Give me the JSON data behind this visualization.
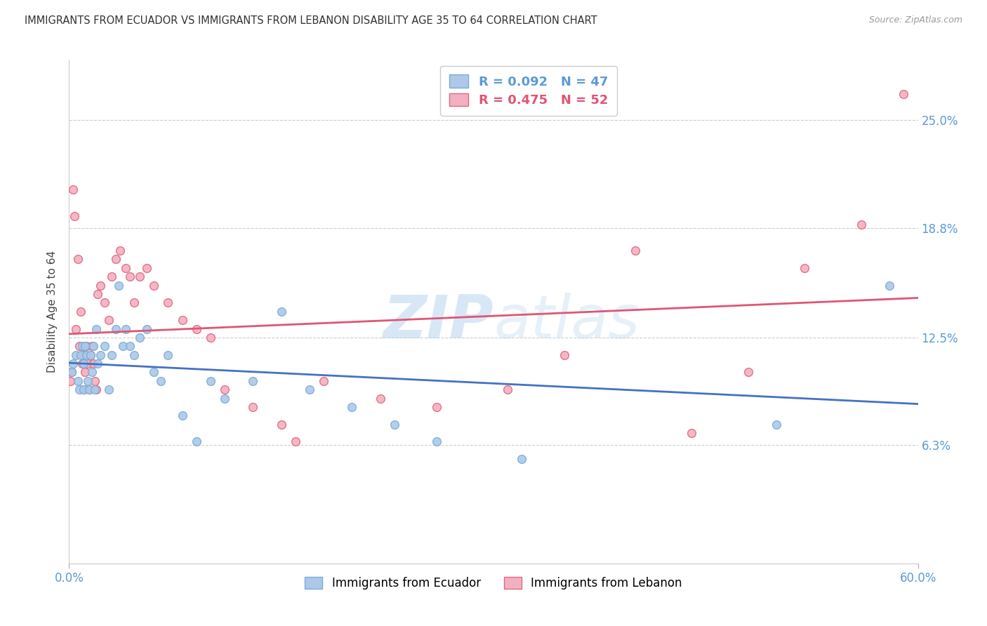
{
  "title": "IMMIGRANTS FROM ECUADOR VS IMMIGRANTS FROM LEBANON DISABILITY AGE 35 TO 64 CORRELATION CHART",
  "source": "Source: ZipAtlas.com",
  "ylabel": "Disability Age 35 to 64",
  "xlim": [
    0.0,
    0.6
  ],
  "ylim": [
    -0.005,
    0.285
  ],
  "ytick_vals": [
    0.063,
    0.125,
    0.188,
    0.25
  ],
  "ytick_labels": [
    "6.3%",
    "12.5%",
    "18.8%",
    "25.0%"
  ],
  "xtick_vals": [
    0.0,
    0.6
  ],
  "xtick_labels": [
    "0.0%",
    "60.0%"
  ],
  "ecuador_color_fill": "#adc8e8",
  "ecuador_color_edge": "#7aaed4",
  "lebanon_color_fill": "#f4b0c0",
  "lebanon_color_edge": "#e06880",
  "legend_ecuador_label": "Immigrants from Ecuador",
  "legend_lebanon_label": "Immigrants from Lebanon",
  "R_ecuador": 0.092,
  "N_ecuador": 47,
  "R_lebanon": 0.475,
  "N_lebanon": 52,
  "text_blue": "#5b9bd5",
  "text_pink": "#e05575",
  "trend_ecuador_color": "#4472c4",
  "trend_lebanon_color": "#e05575",
  "ecuador_x": [
    0.002,
    0.003,
    0.005,
    0.006,
    0.007,
    0.008,
    0.009,
    0.01,
    0.01,
    0.011,
    0.012,
    0.013,
    0.014,
    0.015,
    0.016,
    0.017,
    0.018,
    0.019,
    0.02,
    0.022,
    0.025,
    0.028,
    0.03,
    0.033,
    0.035,
    0.038,
    0.04,
    0.043,
    0.046,
    0.05,
    0.055,
    0.06,
    0.065,
    0.07,
    0.08,
    0.09,
    0.1,
    0.11,
    0.13,
    0.15,
    0.17,
    0.2,
    0.23,
    0.26,
    0.32,
    0.5,
    0.58
  ],
  "ecuador_y": [
    0.105,
    0.11,
    0.115,
    0.1,
    0.095,
    0.115,
    0.12,
    0.11,
    0.095,
    0.12,
    0.115,
    0.1,
    0.095,
    0.115,
    0.105,
    0.12,
    0.095,
    0.13,
    0.11,
    0.115,
    0.12,
    0.095,
    0.115,
    0.13,
    0.155,
    0.12,
    0.13,
    0.12,
    0.115,
    0.125,
    0.13,
    0.105,
    0.1,
    0.115,
    0.08,
    0.065,
    0.1,
    0.09,
    0.1,
    0.14,
    0.095,
    0.085,
    0.075,
    0.065,
    0.055,
    0.075,
    0.155
  ],
  "lebanon_x": [
    0.001,
    0.002,
    0.003,
    0.004,
    0.005,
    0.006,
    0.007,
    0.008,
    0.009,
    0.01,
    0.01,
    0.011,
    0.012,
    0.013,
    0.014,
    0.015,
    0.016,
    0.017,
    0.018,
    0.019,
    0.02,
    0.022,
    0.025,
    0.028,
    0.03,
    0.033,
    0.036,
    0.04,
    0.043,
    0.046,
    0.05,
    0.055,
    0.06,
    0.07,
    0.08,
    0.09,
    0.1,
    0.11,
    0.13,
    0.15,
    0.16,
    0.18,
    0.22,
    0.26,
    0.31,
    0.35,
    0.4,
    0.44,
    0.48,
    0.52,
    0.56,
    0.59
  ],
  "lebanon_y": [
    0.1,
    0.105,
    0.21,
    0.195,
    0.13,
    0.17,
    0.12,
    0.14,
    0.11,
    0.115,
    0.095,
    0.105,
    0.12,
    0.11,
    0.095,
    0.115,
    0.12,
    0.11,
    0.1,
    0.095,
    0.15,
    0.155,
    0.145,
    0.135,
    0.16,
    0.17,
    0.175,
    0.165,
    0.16,
    0.145,
    0.16,
    0.165,
    0.155,
    0.145,
    0.135,
    0.13,
    0.125,
    0.095,
    0.085,
    0.075,
    0.065,
    0.1,
    0.09,
    0.085,
    0.095,
    0.115,
    0.175,
    0.07,
    0.105,
    0.165,
    0.19,
    0.265
  ],
  "watermark_zip": "ZIP",
  "watermark_atlas": "atlas",
  "background_color": "#ffffff",
  "grid_color": "#cccccc",
  "marker_size": 72
}
